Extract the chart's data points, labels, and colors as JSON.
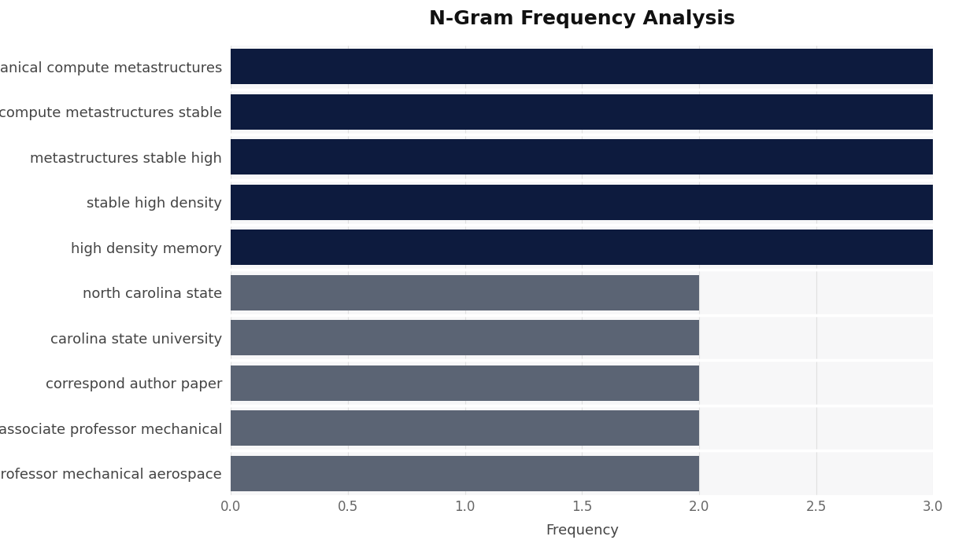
{
  "title": "N-Gram Frequency Analysis",
  "categories": [
    "professor mechanical aerospace",
    "associate professor mechanical",
    "correspond author paper",
    "carolina state university",
    "north carolina state",
    "high density memory",
    "stable high density",
    "metastructures stable high",
    "compute metastructures stable",
    "mechanical compute metastructures"
  ],
  "values": [
    2,
    2,
    2,
    2,
    2,
    3,
    3,
    3,
    3,
    3
  ],
  "colors": [
    "#5b6474",
    "#5b6474",
    "#5b6474",
    "#5b6474",
    "#5b6474",
    "#0d1b3e",
    "#0d1b3e",
    "#0d1b3e",
    "#0d1b3e",
    "#0d1b3e"
  ],
  "xlabel": "Frequency",
  "xlim": [
    0,
    3.0
  ],
  "xticks": [
    0.0,
    0.5,
    1.0,
    1.5,
    2.0,
    2.5,
    3.0
  ],
  "background_color": "#f7f7f8",
  "plot_bg_color": "#f7f7f8",
  "outer_bg_color": "#ffffff",
  "title_fontsize": 18,
  "label_fontsize": 13,
  "tick_fontsize": 12,
  "bar_height": 0.78,
  "bar_gap": 0.08
}
